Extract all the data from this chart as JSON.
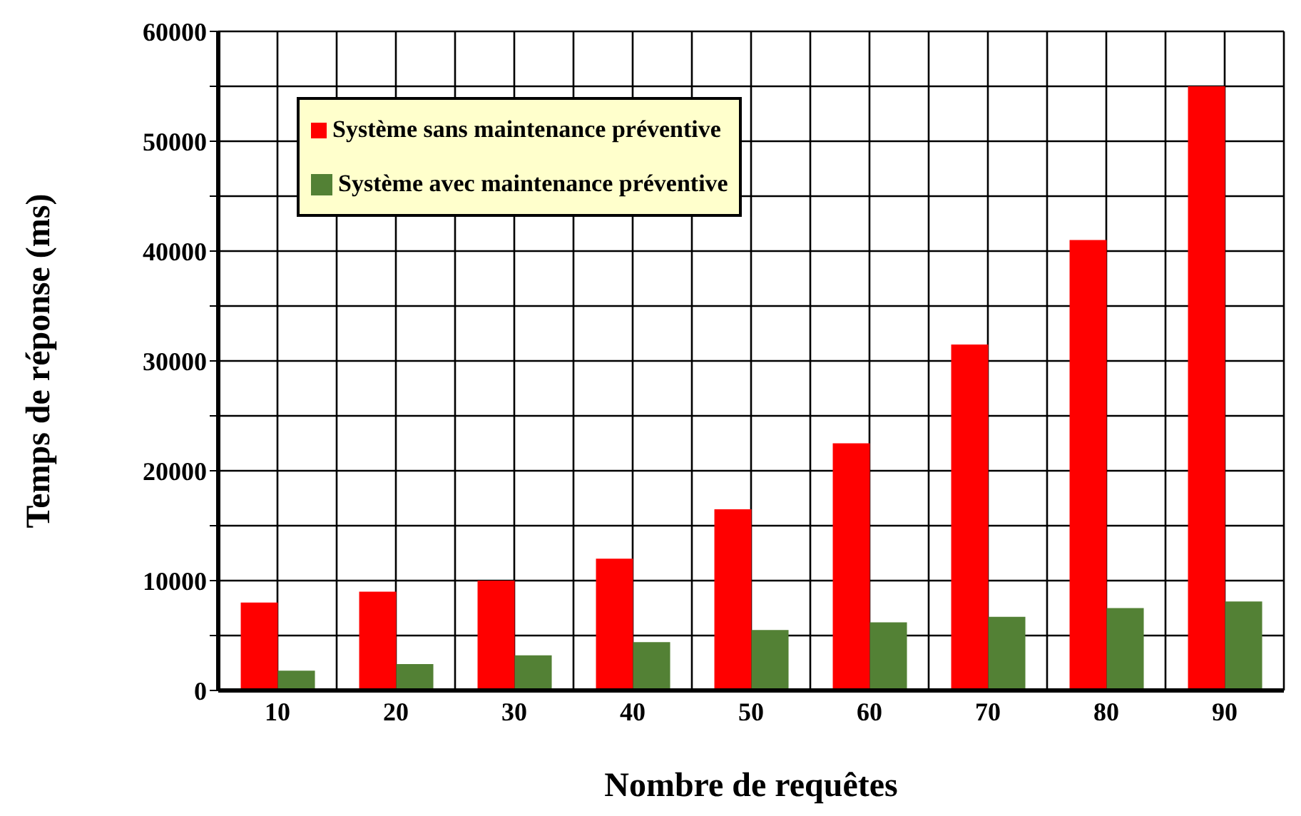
{
  "chart_data": {
    "type": "bar",
    "xlabel": "Nombre de requêtes",
    "ylabel": "Temps de réponse (ms)",
    "categories": [
      "10",
      "20",
      "30",
      "40",
      "50",
      "60",
      "70",
      "80",
      "90"
    ],
    "series": [
      {
        "name": "Système sans maintenance préventive",
        "color": "#ff0000",
        "values": [
          8000,
          9000,
          10000,
          12000,
          16500,
          22500,
          31500,
          41000,
          55000
        ]
      },
      {
        "name": "Système avec maintenance préventive",
        "color": "#538135",
        "values": [
          1800,
          2400,
          3200,
          4400,
          5500,
          6200,
          6700,
          7500,
          8100
        ]
      }
    ],
    "ylim": [
      0,
      60000
    ],
    "yticks": [
      0,
      {
        "value": 5000,
        "label": null
      },
      10000,
      {
        "value": 15000,
        "label": null
      },
      20000,
      {
        "value": 25000,
        "label": null
      },
      30000,
      {
        "value": 35000,
        "label": null
      },
      40000,
      {
        "value": 45000,
        "label": null
      },
      50000,
      {
        "value": 55000,
        "label": null
      },
      60000
    ],
    "grid": true,
    "legend": "top left"
  }
}
